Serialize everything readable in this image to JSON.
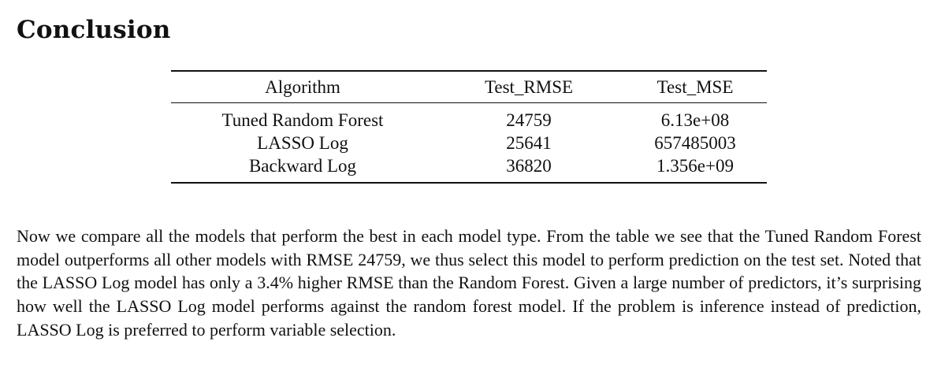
{
  "section": {
    "title": "Conclusion"
  },
  "table": {
    "headers": [
      "Algorithm",
      "Test_RMSE",
      "Test_MSE"
    ],
    "rows": [
      [
        "Tuned Random Forest",
        "24759",
        "6.13e+08"
      ],
      [
        "LASSO Log",
        "25641",
        "657485003"
      ],
      [
        "Backward Log",
        "36820",
        "1.356e+09"
      ]
    ]
  },
  "body": {
    "paragraph": "Now we compare all the models that perform the best in each model type. From the table we see that the Tuned Random Forest model outperforms all other models with RMSE 24759, we thus select this model to perform prediction on the test set. Noted that the LASSO Log model has only a 3.4% higher RMSE than the Random Forest. Given a large number of predictors, it’s surprising how well the LASSO Log model performs against the random forest model. If the problem is inference instead of prediction, LASSO Log is preferred to perform variable selection."
  }
}
